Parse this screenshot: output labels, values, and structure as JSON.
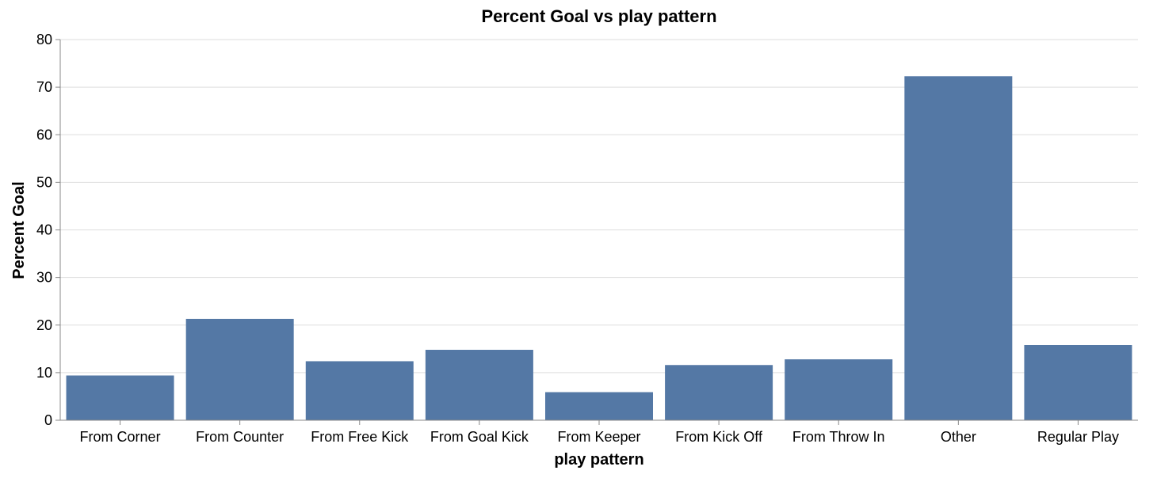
{
  "chart_data": {
    "type": "bar",
    "title": "Percent Goal vs play pattern",
    "xlabel": "play pattern",
    "ylabel": "Percent Goal",
    "categories": [
      "From Corner",
      "From Counter",
      "From Free Kick",
      "From Goal Kick",
      "From Keeper",
      "From Kick Off",
      "From Throw In",
      "Other",
      "Regular Play"
    ],
    "values": [
      9.4,
      21.3,
      12.4,
      14.8,
      5.9,
      11.6,
      12.8,
      72.3,
      15.8
    ],
    "ylim": [
      0,
      80
    ],
    "yticks": [
      0,
      10,
      20,
      30,
      40,
      50,
      60,
      70,
      80
    ],
    "grid": true,
    "bar_color": "#5478a5"
  }
}
